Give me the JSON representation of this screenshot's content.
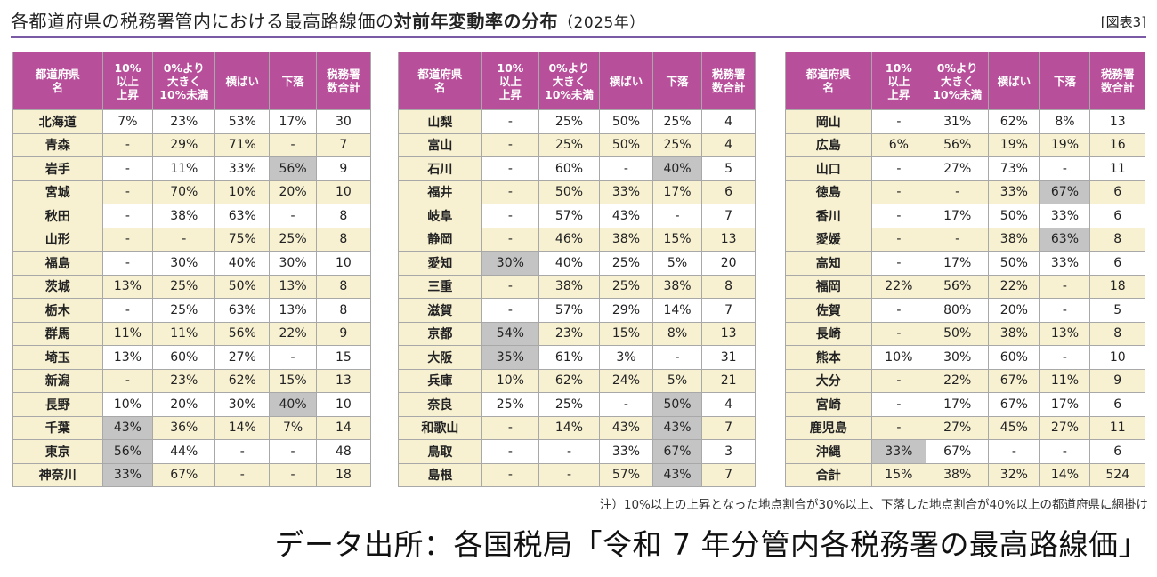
{
  "header": {
    "title_part1": "各都道府県の税務署管内における最高路線価の",
    "title_bold": "対前年変動率の分布",
    "title_year": "（2025年）",
    "figure_label": "[図表3]"
  },
  "table_columns": [
    "都道府県名",
    "10%以上上昇",
    "0%より大きく10%未満",
    "横ばい",
    "下落",
    "税務署数合計"
  ],
  "column_header_lines": [
    [
      "都道府県",
      "名"
    ],
    [
      "10%",
      "以上",
      "上昇"
    ],
    [
      "0%より",
      "大きく",
      "10%未満"
    ],
    [
      "横ばい"
    ],
    [
      "下落"
    ],
    [
      "税務署",
      "数合計"
    ]
  ],
  "tables": [
    {
      "rows": [
        [
          "北海道",
          "7%",
          "23%",
          "53%",
          "17%",
          "30"
        ],
        [
          "青森",
          "-",
          "29%",
          "71%",
          "-",
          "7"
        ],
        [
          "岩手",
          "-",
          "11%",
          "33%",
          "56%",
          "9"
        ],
        [
          "宮城",
          "-",
          "70%",
          "10%",
          "20%",
          "10"
        ],
        [
          "秋田",
          "-",
          "38%",
          "63%",
          "-",
          "8"
        ],
        [
          "山形",
          "-",
          "-",
          "75%",
          "25%",
          "8"
        ],
        [
          "福島",
          "-",
          "30%",
          "40%",
          "30%",
          "10"
        ],
        [
          "茨城",
          "13%",
          "25%",
          "50%",
          "13%",
          "8"
        ],
        [
          "栃木",
          "-",
          "25%",
          "63%",
          "13%",
          "8"
        ],
        [
          "群馬",
          "11%",
          "11%",
          "56%",
          "22%",
          "9"
        ],
        [
          "埼玉",
          "13%",
          "60%",
          "27%",
          "-",
          "15"
        ],
        [
          "新潟",
          "-",
          "23%",
          "62%",
          "15%",
          "13"
        ],
        [
          "長野",
          "10%",
          "20%",
          "30%",
          "40%",
          "10"
        ],
        [
          "千葉",
          "43%",
          "36%",
          "14%",
          "7%",
          "14"
        ],
        [
          "東京",
          "56%",
          "44%",
          "-",
          "-",
          "48"
        ],
        [
          "神奈川",
          "33%",
          "67%",
          "-",
          "-",
          "18"
        ]
      ],
      "highlights": [
        [
          2,
          4
        ],
        [
          12,
          4
        ],
        [
          13,
          1
        ],
        [
          14,
          1
        ],
        [
          15,
          1
        ]
      ]
    },
    {
      "rows": [
        [
          "山梨",
          "-",
          "25%",
          "50%",
          "25%",
          "4"
        ],
        [
          "富山",
          "-",
          "25%",
          "50%",
          "25%",
          "4"
        ],
        [
          "石川",
          "-",
          "60%",
          "-",
          "40%",
          "5"
        ],
        [
          "福井",
          "-",
          "50%",
          "33%",
          "17%",
          "6"
        ],
        [
          "岐阜",
          "-",
          "57%",
          "43%",
          "-",
          "7"
        ],
        [
          "静岡",
          "-",
          "46%",
          "38%",
          "15%",
          "13"
        ],
        [
          "愛知",
          "30%",
          "40%",
          "25%",
          "5%",
          "20"
        ],
        [
          "三重",
          "-",
          "38%",
          "25%",
          "38%",
          "8"
        ],
        [
          "滋賀",
          "-",
          "57%",
          "29%",
          "14%",
          "7"
        ],
        [
          "京都",
          "54%",
          "23%",
          "15%",
          "8%",
          "13"
        ],
        [
          "大阪",
          "35%",
          "61%",
          "3%",
          "-",
          "31"
        ],
        [
          "兵庫",
          "10%",
          "62%",
          "24%",
          "5%",
          "21"
        ],
        [
          "奈良",
          "25%",
          "25%",
          "-",
          "50%",
          "4"
        ],
        [
          "和歌山",
          "-",
          "14%",
          "43%",
          "43%",
          "7"
        ],
        [
          "鳥取",
          "-",
          "-",
          "33%",
          "67%",
          "3"
        ],
        [
          "島根",
          "-",
          "-",
          "57%",
          "43%",
          "7"
        ]
      ],
      "highlights": [
        [
          2,
          4
        ],
        [
          6,
          1
        ],
        [
          9,
          1
        ],
        [
          10,
          1
        ],
        [
          12,
          4
        ],
        [
          13,
          4
        ],
        [
          14,
          4
        ],
        [
          15,
          4
        ]
      ]
    },
    {
      "rows": [
        [
          "岡山",
          "-",
          "31%",
          "62%",
          "8%",
          "13"
        ],
        [
          "広島",
          "6%",
          "56%",
          "19%",
          "19%",
          "16"
        ],
        [
          "山口",
          "-",
          "27%",
          "73%",
          "-",
          "11"
        ],
        [
          "徳島",
          "-",
          "-",
          "33%",
          "67%",
          "6"
        ],
        [
          "香川",
          "-",
          "17%",
          "50%",
          "33%",
          "6"
        ],
        [
          "愛媛",
          "-",
          "-",
          "38%",
          "63%",
          "8"
        ],
        [
          "高知",
          "-",
          "17%",
          "50%",
          "33%",
          "6"
        ],
        [
          "福岡",
          "22%",
          "56%",
          "22%",
          "-",
          "18"
        ],
        [
          "佐賀",
          "-",
          "80%",
          "20%",
          "-",
          "5"
        ],
        [
          "長崎",
          "-",
          "50%",
          "38%",
          "13%",
          "8"
        ],
        [
          "熊本",
          "10%",
          "30%",
          "60%",
          "-",
          "10"
        ],
        [
          "大分",
          "-",
          "22%",
          "67%",
          "11%",
          "9"
        ],
        [
          "宮崎",
          "-",
          "17%",
          "67%",
          "17%",
          "6"
        ],
        [
          "鹿児島",
          "-",
          "27%",
          "45%",
          "27%",
          "11"
        ],
        [
          "沖縄",
          "33%",
          "67%",
          "-",
          "-",
          "6"
        ],
        [
          "合計",
          "15%",
          "38%",
          "32%",
          "14%",
          "524"
        ]
      ],
      "highlights": [
        [
          3,
          4
        ],
        [
          5,
          4
        ],
        [
          14,
          1
        ]
      ]
    }
  ],
  "note": "注）10%以上の上昇となった地点割合が30%以上、下落した地点割合が40%以上の都道府県に網掛け",
  "source": "データ出所：各国税局「令和 7 年分管内各税務署の最高路線価」",
  "colors": {
    "header_bg": "#b84f9a",
    "stripe_bg": "#f7f1d2",
    "highlight_bg": "#c4c4c4",
    "rule": "#7a5aa5"
  }
}
